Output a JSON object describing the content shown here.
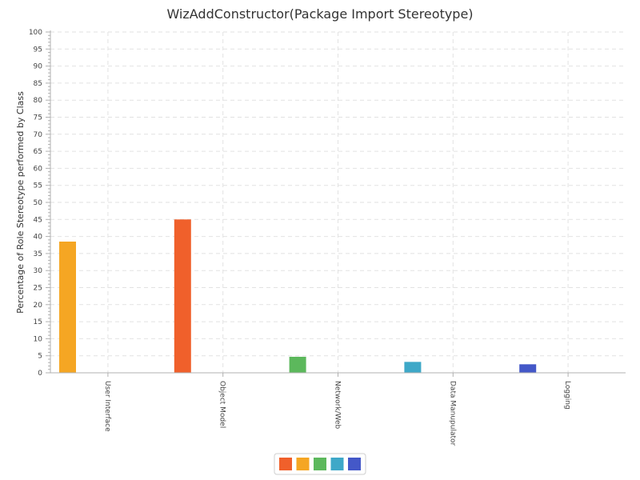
{
  "chart_data": {
    "type": "bar",
    "title": "WizAddConstructor(Package Import Stereotype)",
    "xlabel": "",
    "ylabel": "Percentage of Role Stereotype performed by Class",
    "categories": [
      "User Interface",
      "Object Model",
      "Network/Web",
      "Data Manupulator",
      "Logging"
    ],
    "ylim": [
      0,
      100
    ],
    "ytick_step": 5,
    "grid": true,
    "legend_position": "bottom-center",
    "series": [
      {
        "color": "#f0602b",
        "values": [
          0,
          45,
          0,
          0,
          0
        ]
      },
      {
        "color": "#f5a623",
        "values": [
          38.5,
          0,
          0,
          0,
          0
        ]
      },
      {
        "color": "#5cb85c",
        "values": [
          0,
          0,
          4.7,
          0,
          0
        ]
      },
      {
        "color": "#3ea8c8",
        "values": [
          0,
          0,
          0,
          3.2,
          0
        ]
      },
      {
        "color": "#4458c8",
        "values": [
          0,
          0,
          0,
          0,
          2.5
        ]
      }
    ]
  }
}
